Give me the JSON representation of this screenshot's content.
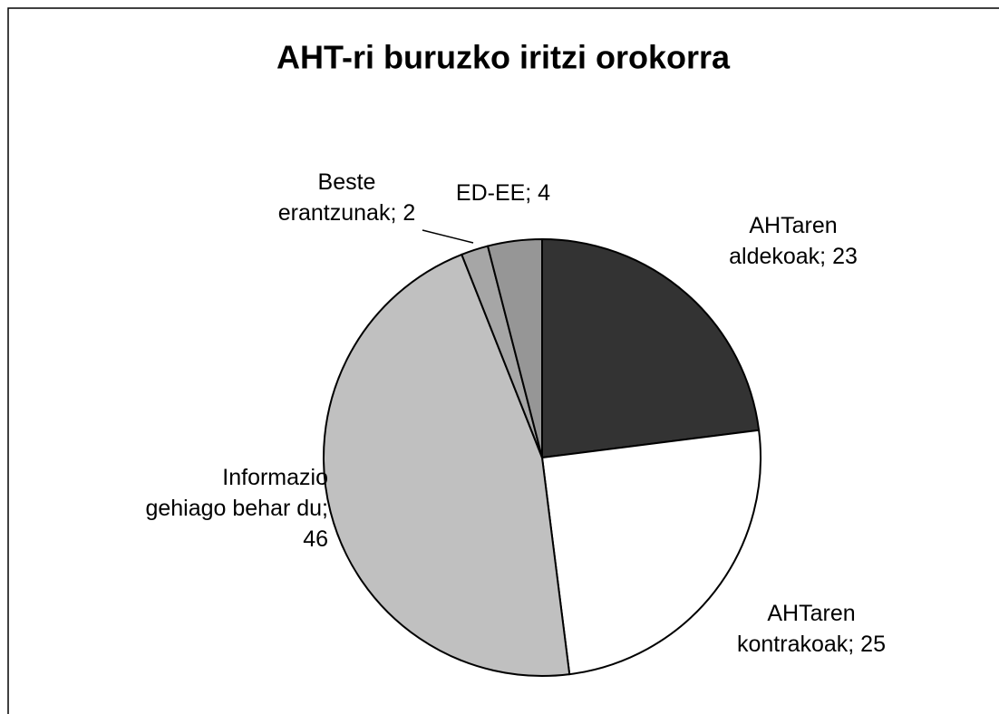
{
  "chart_data": {
    "type": "pie",
    "title": "AHT-ri buruzko iritzi orokorra",
    "values": [
      23,
      25,
      46,
      2,
      4
    ],
    "value_labels": [
      "AHTaren aldekoak; 23",
      "AHTaren kontrakoak; 25",
      "Informazio gehiago behar du; 46",
      "Beste erantzunak; 2",
      "ED-EE; 4"
    ],
    "colors": [
      "#333333",
      "#ffffff",
      "#c0c0c0",
      "#a6a6a6",
      "#969696"
    ]
  }
}
